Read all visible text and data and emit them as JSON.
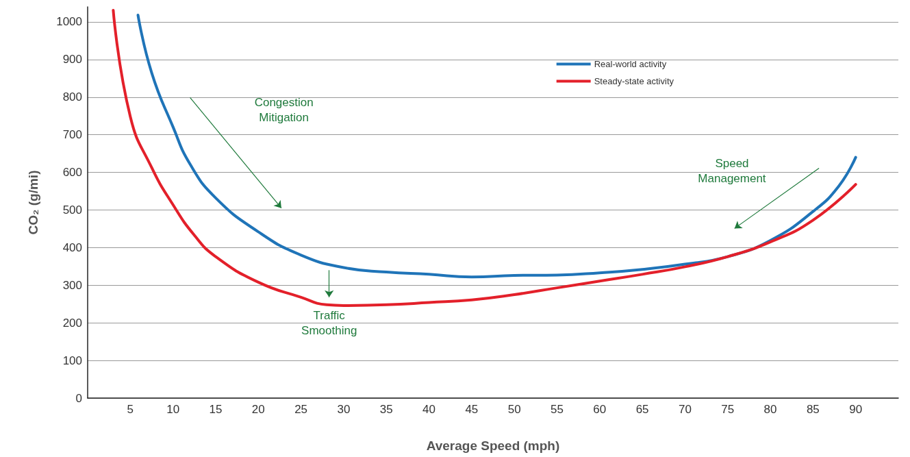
{
  "chart_data": {
    "type": "line",
    "xlabel": "Average Speed (mph)",
    "ylabel": "CO₂ (g/mi)",
    "xlim": [
      0,
      95
    ],
    "xticks": [
      5,
      10,
      15,
      20,
      25,
      30,
      35,
      40,
      45,
      50,
      55,
      60,
      65,
      70,
      75,
      80,
      85,
      90
    ],
    "ylim": [
      0,
      1040
    ],
    "yticks": [
      0,
      100,
      200,
      300,
      400,
      500,
      600,
      700,
      800,
      900,
      1000
    ],
    "grid": "y",
    "legend": "top right",
    "marker": "none",
    "line_style": "solid",
    "series": [
      {
        "name": "Real-world activity",
        "color": "#1f74b8",
        "x": [
          5.9,
          7.5,
          10,
          12,
          15,
          20,
          25,
          30,
          35,
          40,
          45,
          50,
          55,
          60,
          65,
          70,
          75,
          80,
          85,
          88,
          90
        ],
        "values": [
          1018,
          865,
          721,
          622,
          532,
          442,
          380,
          347,
          335,
          329,
          322,
          326,
          327,
          333,
          342,
          356,
          376,
          419,
          496,
          563,
          640
        ]
      },
      {
        "name": "Steady-state activity",
        "color": "#e3202a",
        "x": [
          3,
          5,
          7.5,
          10,
          12.5,
          15,
          20,
          25,
          28,
          30,
          35,
          40,
          45,
          50,
          55,
          60,
          65,
          70,
          75,
          80,
          85,
          90
        ],
        "values": [
          1031,
          748,
          613,
          514,
          433,
          376,
          308,
          268,
          248,
          246,
          248,
          254,
          261,
          275,
          293,
          311,
          329,
          349,
          376,
          415,
          473,
          568
        ]
      }
    ],
    "annotations": [
      "Congestion\nMitigation",
      "Traffic\nSmoothing",
      "Speed\nManagement"
    ]
  }
}
